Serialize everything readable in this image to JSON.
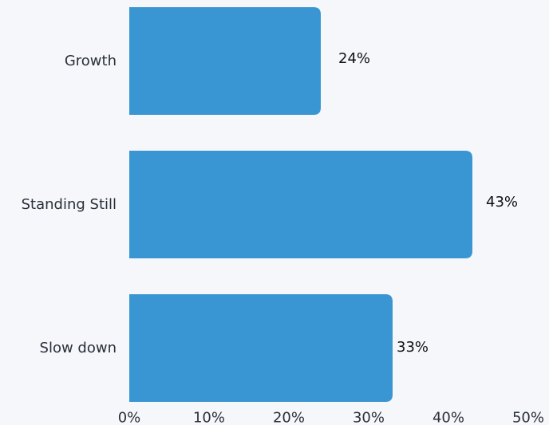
{
  "chart_data": {
    "type": "bar",
    "orientation": "horizontal",
    "title": "",
    "xlabel": "",
    "ylabel": "",
    "categories": [
      "Growth",
      "Standing Still",
      "Slow down"
    ],
    "values": [
      24,
      43,
      33
    ],
    "value_labels": [
      "24%",
      "43%",
      "33%"
    ],
    "xlim": [
      0,
      50
    ],
    "x_ticks": [
      0,
      10,
      20,
      30,
      40,
      50
    ],
    "x_tick_labels": [
      "0%",
      "10%",
      "20%",
      "30%",
      "40%",
      "50%"
    ],
    "grid": false,
    "legend": "none",
    "bar_color": "#3a96d2"
  }
}
